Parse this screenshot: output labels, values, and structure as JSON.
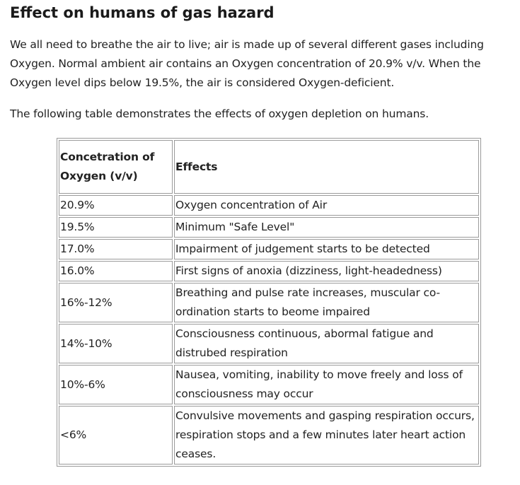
{
  "heading": "Effect on humans of gas hazard",
  "intro": "We all need to breathe the air to live; air is made up of several different gases including Oxygen. Normal ambient air contains an Oxygen concentration of 20.9% v/v. When the Oxygen level dips below 19.5%, the air is considered Oxygen-deficient.",
  "lead": "The following table demonstrates the effects of oxygen depletion on humans.",
  "table": {
    "headers": [
      "Concetration of Oxygen (v/v)",
      "Effects"
    ],
    "rows": [
      {
        "concentration": "20.9%",
        "effect": "Oxygen concentration of Air"
      },
      {
        "concentration": "19.5%",
        "effect": "Minimum \"Safe Level\""
      },
      {
        "concentration": "17.0%",
        "effect": "Impairment of judgement starts to be detected"
      },
      {
        "concentration": "16.0%",
        "effect": "First signs of anoxia (dizziness, light-headedness)"
      },
      {
        "concentration": "16%-12%",
        "effect": "Breathing and pulse rate increases, muscular co-ordination starts to beome impaired"
      },
      {
        "concentration": "14%-10%",
        "effect": "Consciousness continuous, abormal fatigue and distrubed respiration"
      },
      {
        "concentration": "10%-6%",
        "effect": "Nausea, vomiting, inability to move freely and loss of consciousness may occur"
      },
      {
        "concentration": "<6%",
        "effect": "Convulsive movements and gasping respiration occurs, respiration stops and a few minutes later heart action ceases."
      }
    ]
  }
}
